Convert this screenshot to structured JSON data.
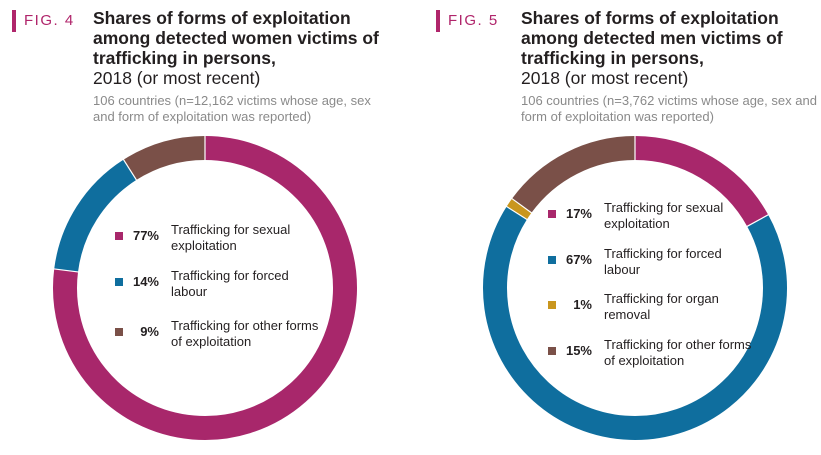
{
  "figures": [
    {
      "fig_label": "FIG. 4",
      "title": "Shares of forms of exploitation among detected women victims of trafficking in persons,",
      "title_year": "2018 (or most recent)",
      "subtitle": "106 countries (n=12,162 victims whose age, sex and form of exploitation was reported)"
    },
    {
      "fig_label": "FIG. 5",
      "title": "Shares of forms of exploitation among detected men victims of trafficking in persons,",
      "title_year": "2018 (or most recent)",
      "subtitle": "106 countries (n=3,762 victims whose age, sex and form of exploitation was reported)"
    }
  ],
  "colors": {
    "accent": "#b0256b",
    "grey_text": "#8a8a8a"
  },
  "chart_data": [
    {
      "type": "pie",
      "title": "Shares of forms of exploitation among detected women victims of trafficking in persons, 2018 (or most recent)",
      "categories": [
        "Trafficking for sexual exploitation",
        "Trafficking for forced labour",
        "Trafficking for other forms of exploitation"
      ],
      "values": [
        77,
        14,
        9
      ],
      "labels": [
        "77%",
        "14%",
        "9%"
      ],
      "colors": [
        "#a8276b",
        "#0f6e9e",
        "#7a5048"
      ],
      "legend": "center"
    },
    {
      "type": "pie",
      "title": "Shares of forms of exploitation among detected men victims of trafficking in persons, 2018 (or most recent)",
      "categories": [
        "Trafficking for sexual exploitation",
        "Trafficking for forced labour",
        "Trafficking for organ removal",
        "Trafficking for other forms of exploitation"
      ],
      "values": [
        17,
        67,
        1,
        15
      ],
      "labels": [
        "17%",
        "67%",
        "1%",
        "15%"
      ],
      "colors": [
        "#a8276b",
        "#0f6e9e",
        "#c9961e",
        "#7a5048"
      ],
      "legend": "center"
    }
  ]
}
